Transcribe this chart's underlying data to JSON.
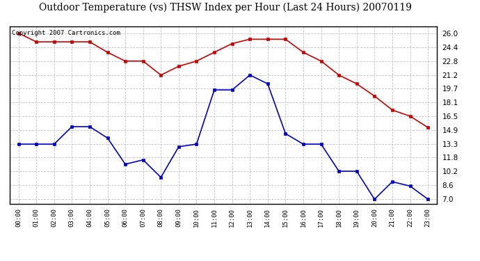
{
  "title": "Outdoor Temperature (vs) THSW Index per Hour (Last 24 Hours) 20070119",
  "copyright_text": "Copyright 2007 Cartronics.com",
  "hours": [
    0,
    1,
    2,
    3,
    4,
    5,
    6,
    7,
    8,
    9,
    10,
    11,
    12,
    13,
    14,
    15,
    16,
    17,
    18,
    19,
    20,
    21,
    22,
    23
  ],
  "hour_labels": [
    "00:00",
    "01:00",
    "02:00",
    "03:00",
    "04:00",
    "05:00",
    "06:00",
    "07:00",
    "08:00",
    "09:00",
    "10:00",
    "11:00",
    "12:00",
    "13:00",
    "14:00",
    "15:00",
    "16:00",
    "17:00",
    "18:00",
    "19:00",
    "20:00",
    "21:00",
    "22:00",
    "23:00"
  ],
  "red_data": [
    26.0,
    25.0,
    25.0,
    25.0,
    25.0,
    23.8,
    22.8,
    22.8,
    21.2,
    22.2,
    22.8,
    23.8,
    24.8,
    25.3,
    25.3,
    25.3,
    23.8,
    22.8,
    21.2,
    20.2,
    18.8,
    17.2,
    16.5,
    15.2
  ],
  "blue_data": [
    13.3,
    13.3,
    13.3,
    15.3,
    15.3,
    14.0,
    11.0,
    11.5,
    9.5,
    13.0,
    13.3,
    19.5,
    19.5,
    21.2,
    20.2,
    14.5,
    13.3,
    13.3,
    10.2,
    10.2,
    7.0,
    9.0,
    8.5,
    7.0
  ],
  "red_color": "#cc0000",
  "blue_color": "#0000cc",
  "background_color": "#ffffff",
  "grid_color": "#bbbbbb",
  "yticks": [
    7.0,
    8.6,
    10.2,
    11.8,
    13.3,
    14.9,
    16.5,
    18.1,
    19.7,
    21.2,
    22.8,
    24.4,
    26.0
  ],
  "ylim": [
    6.5,
    26.8
  ],
  "title_fontsize": 10,
  "copyright_fontsize": 6.5,
  "marker_size": 3.0,
  "line_width": 1.2
}
